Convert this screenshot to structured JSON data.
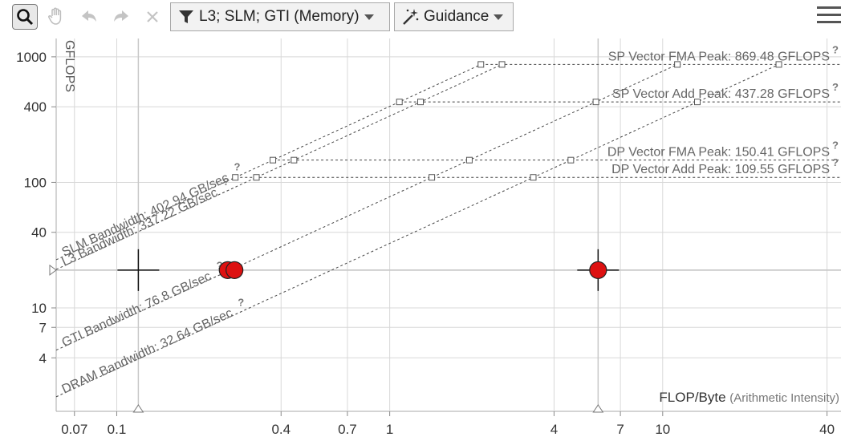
{
  "toolbar": {
    "filter_label": "L3; SLM; GTI (Memory)",
    "guidance_label": "Guidance",
    "icons": [
      "search-icon",
      "pan-icon",
      "undo-icon",
      "redo-icon",
      "clear-icon",
      "filter-icon",
      "wand-icon",
      "menu-icon"
    ]
  },
  "chart_data": {
    "type": "scatter",
    "subtype": "roofline",
    "scale": "log-log",
    "ylabel": "GFLOPS",
    "xlabel": "FLOP/Byte",
    "xlabel_note": "(Arithmetic Intensity)",
    "xlim": [
      0.06,
      45
    ],
    "ylim": [
      1.5,
      1400
    ],
    "x_ticks": [
      "0.07",
      "0.1",
      "0.4",
      "0.7",
      "1",
      "4",
      "7",
      "10",
      "40"
    ],
    "y_ticks": [
      "1000",
      "400",
      "100",
      "40",
      "10",
      "7",
      "4"
    ],
    "compute_roofs": [
      {
        "label": "SP Vector FMA Peak: 869.48 GFLOPS",
        "value": 869.48
      },
      {
        "label": "SP Vector Add Peak: 437.28 GFLOPS",
        "value": 437.28
      },
      {
        "label": "DP Vector FMA Peak: 150.41 GFLOPS",
        "value": 150.41
      },
      {
        "label": "DP Vector Add Peak: 109.55 GFLOPS",
        "value": 109.55
      }
    ],
    "memory_roofs": [
      {
        "label": "SLM Bandwidth: 402.94 GB/sec",
        "value": 402.94
      },
      {
        "label": "L3 Bandwidth: 337.22 GB/sec",
        "value": 337.22
      },
      {
        "label": "GTI Bandwidth: 76.8 GB/sec",
        "value": 76.8
      },
      {
        "label": "DRAM Bandwidth: 32.64 GB/sec",
        "value": 32.64
      }
    ],
    "points": [
      {
        "x": 0.255,
        "y": 20,
        "color": "#dd1111"
      },
      {
        "x": 0.27,
        "y": 20,
        "color": "#dd1111"
      },
      {
        "x": 5.8,
        "y": 20,
        "color": "#dd1111"
      }
    ],
    "crosshairs": [
      {
        "x": 0.12,
        "y": 20
      },
      {
        "x": 5.8,
        "y": 20
      }
    ],
    "help_mark": "?"
  }
}
